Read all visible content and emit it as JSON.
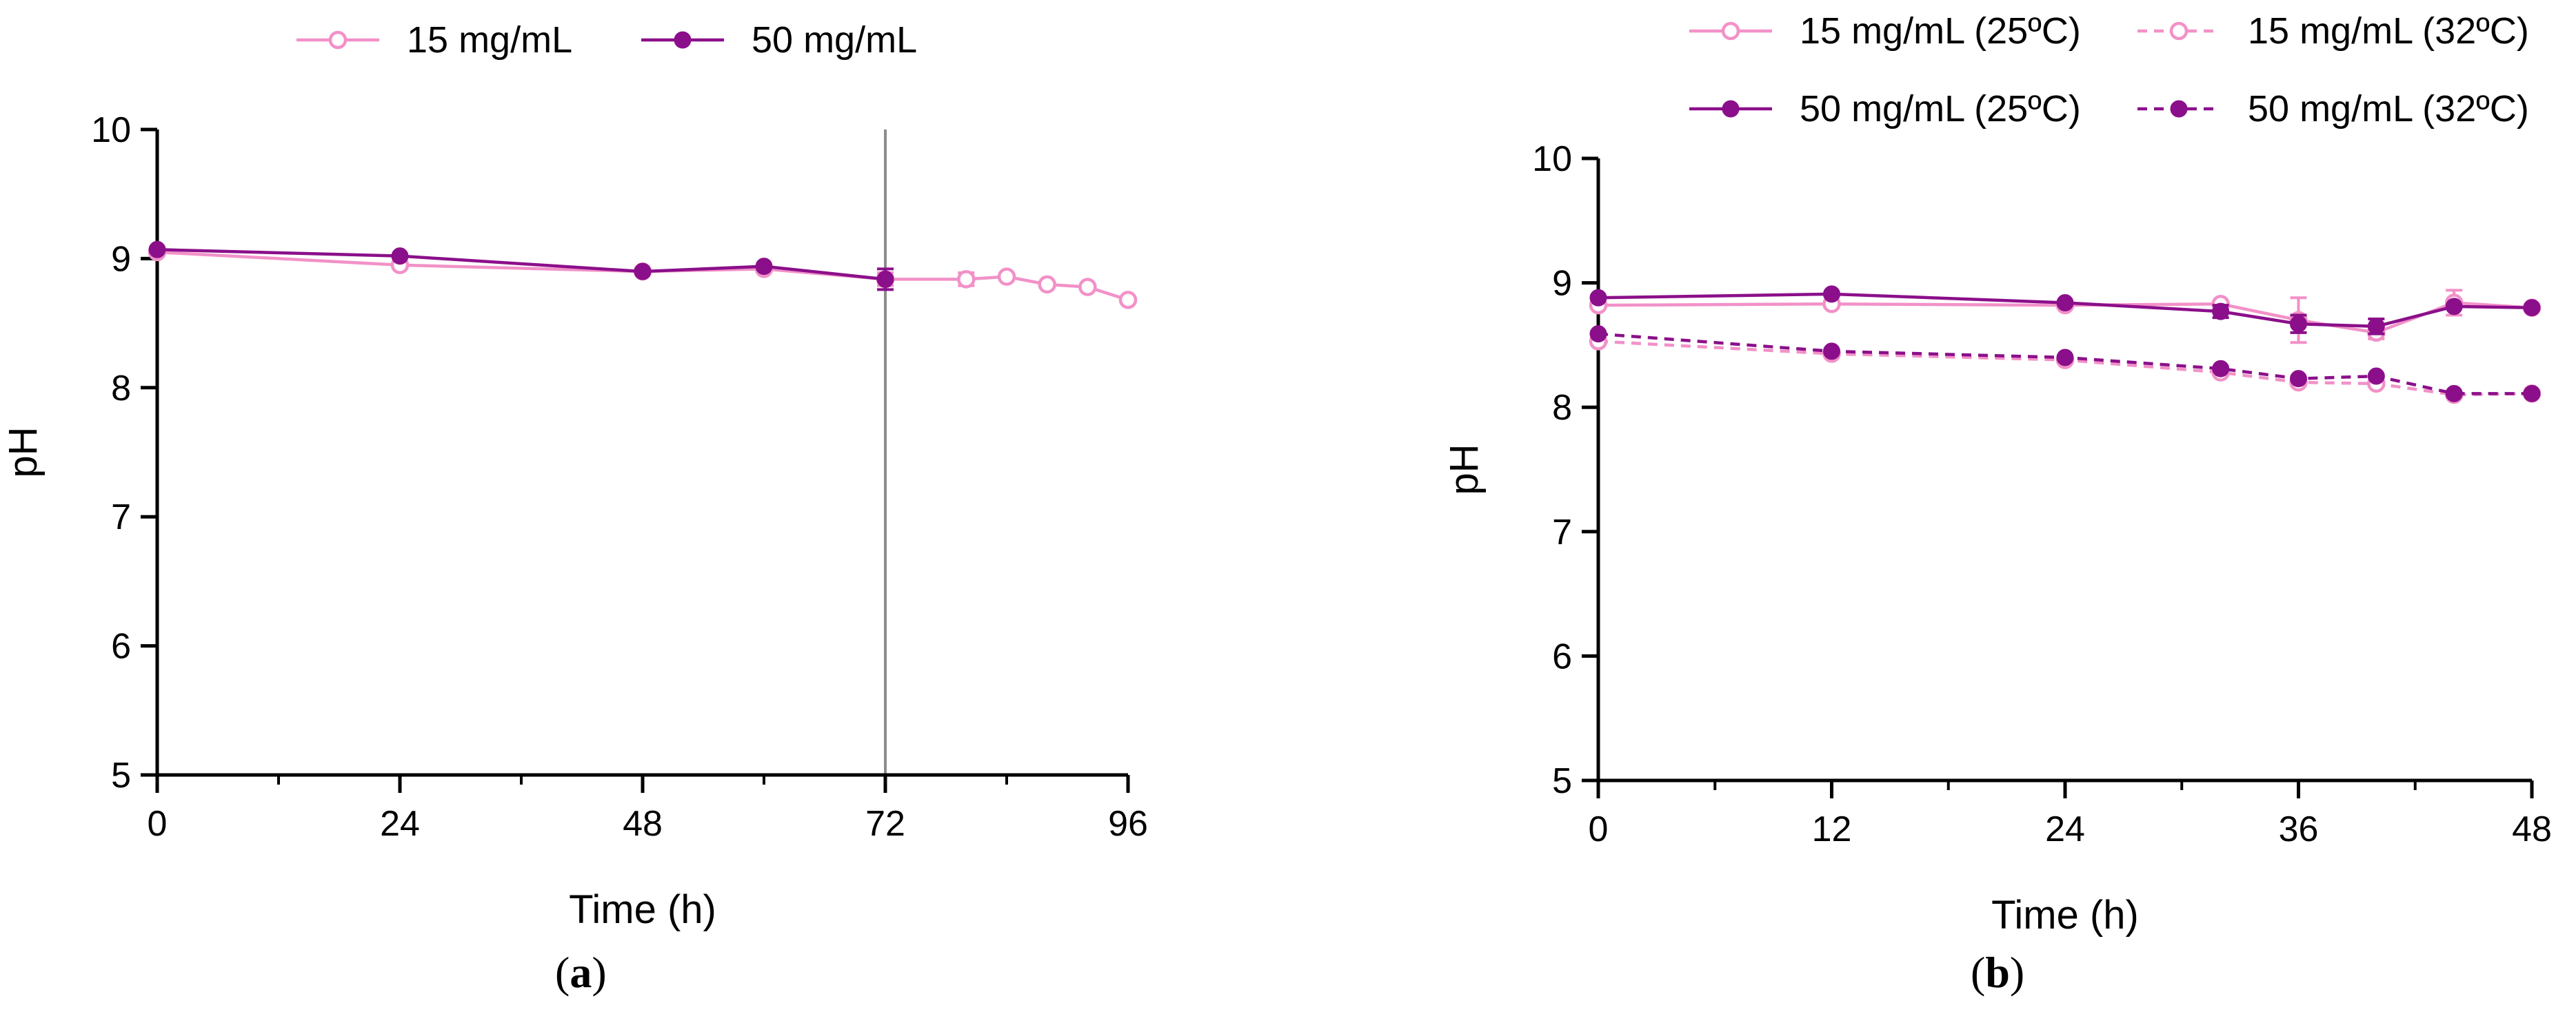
{
  "colors": {
    "light": "#f291c8",
    "dark": "#8b0f8a",
    "axis": "#000000",
    "vline": "#8c8c8c"
  },
  "charts": [
    {
      "panel_label": "a",
      "chart_data": {
        "type": "line",
        "xlabel": "Time (h)",
        "ylabel": "pH",
        "xlim": [
          0,
          96
        ],
        "ylim": [
          5,
          10
        ],
        "xticks": [
          0,
          24,
          48,
          72,
          96
        ],
        "yticks": [
          5,
          6,
          7,
          8,
          9,
          10
        ],
        "legend_position": "top",
        "vertical_line_at": 72,
        "series": [
          {
            "name": "15 mg/mL",
            "color": "#f291c8",
            "marker": "open",
            "dashed": false,
            "x": [
              0,
              24,
              48,
              60,
              72,
              80,
              84,
              88,
              92,
              96
            ],
            "y": [
              9.05,
              8.95,
              8.9,
              8.92,
              8.84,
              8.84,
              8.86,
              8.8,
              8.78,
              8.68
            ],
            "err": [
              0,
              0,
              0,
              0,
              0.05,
              0.05,
              0,
              0,
              0,
              0
            ]
          },
          {
            "name": "50 mg/mL",
            "color": "#8b0f8a",
            "marker": "filled",
            "dashed": false,
            "x": [
              0,
              24,
              48,
              60,
              72
            ],
            "y": [
              9.07,
              9.02,
              8.9,
              8.94,
              8.84
            ],
            "err": [
              0,
              0,
              0,
              0,
              0.08
            ]
          }
        ]
      }
    },
    {
      "panel_label": "b",
      "chart_data": {
        "type": "line",
        "xlabel": "Time (h)",
        "ylabel": "pH",
        "xlim": [
          0,
          48
        ],
        "ylim": [
          5,
          10
        ],
        "xticks": [
          0,
          12,
          24,
          36,
          48
        ],
        "yticks": [
          5,
          6,
          7,
          8,
          9,
          10
        ],
        "legend_position": "top",
        "series": [
          {
            "name": "15 mg/mL (25ºC)",
            "color": "#f291c8",
            "marker": "open",
            "dashed": false,
            "x": [
              0,
              12,
              24,
              32,
              36,
              40,
              44,
              48
            ],
            "y": [
              8.82,
              8.83,
              8.82,
              8.83,
              8.7,
              8.6,
              8.84,
              8.8
            ],
            "err": [
              0,
              0,
              0,
              0,
              0.18,
              0.05,
              0.1,
              0
            ]
          },
          {
            "name": "15 mg/mL (32ºC)",
            "color": "#f291c8",
            "marker": "open",
            "dashed": true,
            "x": [
              0,
              12,
              24,
              32,
              36,
              40,
              44,
              48
            ],
            "y": [
              8.53,
              8.43,
              8.38,
              8.28,
              8.2,
              8.19,
              8.1,
              8.11
            ],
            "err": [
              0,
              0,
              0,
              0,
              0,
              0,
              0,
              0
            ]
          },
          {
            "name": "50 mg/mL (25ºC)",
            "color": "#8b0f8a",
            "marker": "filled",
            "dashed": false,
            "x": [
              0,
              12,
              24,
              32,
              36,
              40,
              44,
              48
            ],
            "y": [
              8.88,
              8.91,
              8.84,
              8.77,
              8.67,
              8.65,
              8.81,
              8.8
            ],
            "err": [
              0,
              0,
              0,
              0.05,
              0.07,
              0.06,
              0,
              0
            ]
          },
          {
            "name": "50 mg/mL (32ºC)",
            "color": "#8b0f8a",
            "marker": "filled",
            "dashed": true,
            "x": [
              0,
              12,
              24,
              32,
              36,
              40,
              44,
              48
            ],
            "y": [
              8.59,
              8.45,
              8.4,
              8.31,
              8.23,
              8.25,
              8.11,
              8.11
            ],
            "err": [
              0,
              0,
              0,
              0,
              0,
              0,
              0,
              0
            ]
          }
        ]
      }
    }
  ]
}
